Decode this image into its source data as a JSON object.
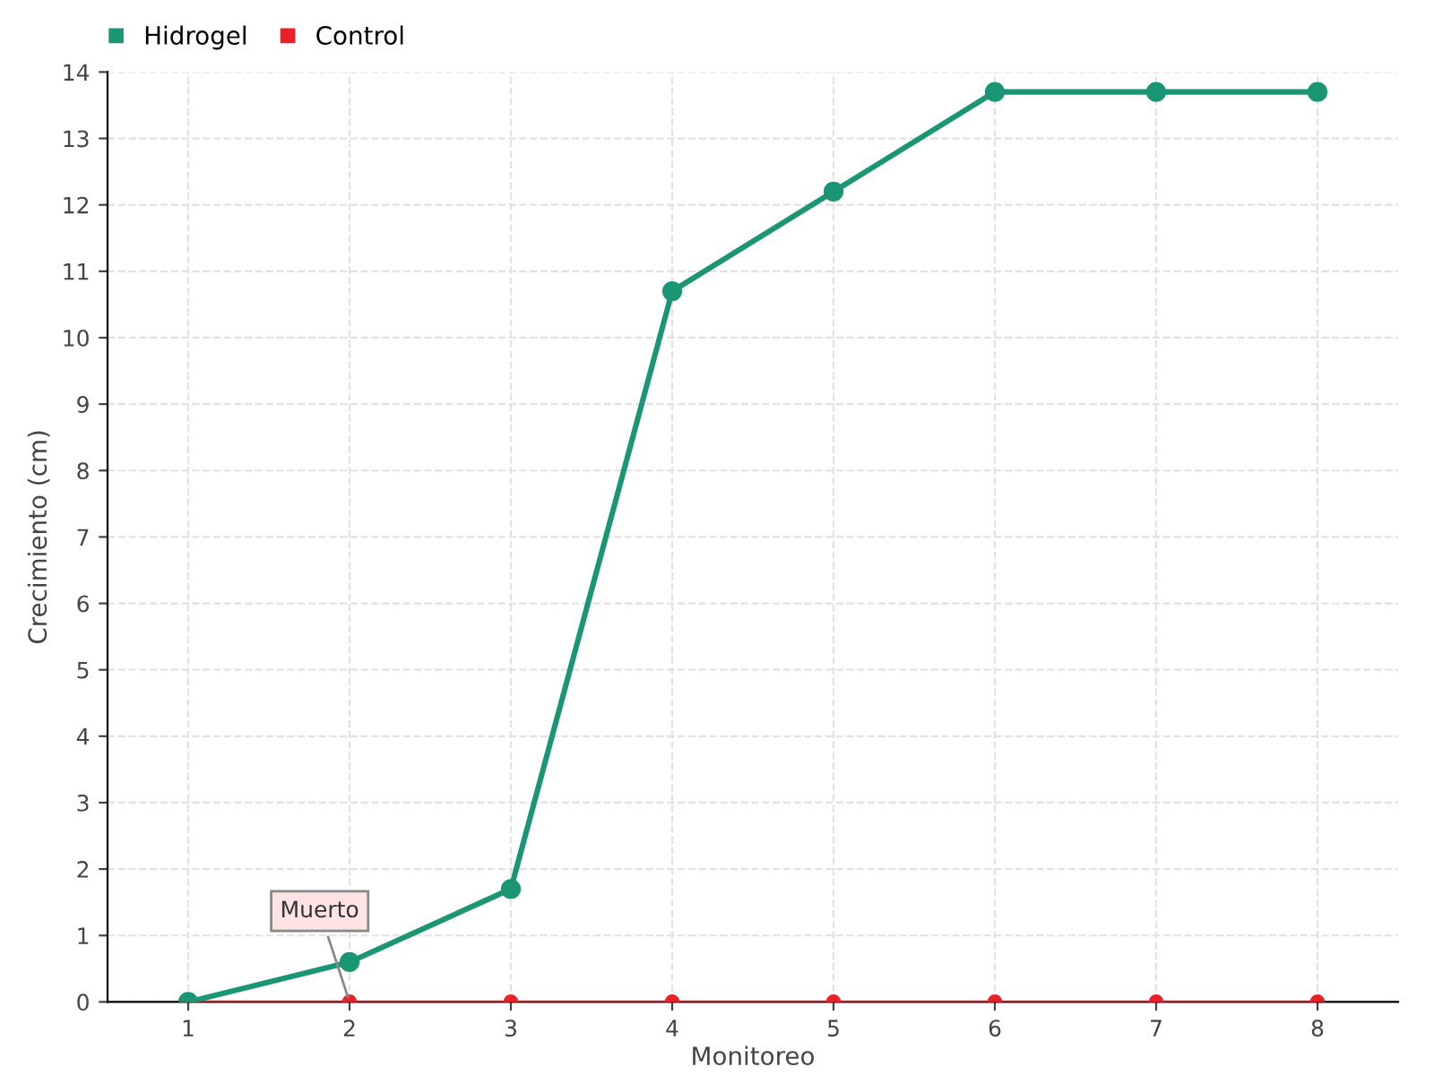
{
  "chart_data": {
    "type": "line",
    "xlabel": "Monitoreo",
    "ylabel": "Crecimiento (cm)",
    "categories": [
      "1",
      "2",
      "3",
      "4",
      "5",
      "6",
      "7",
      "8"
    ],
    "series": [
      {
        "name": "Hidrogel",
        "color": "#1b9675",
        "values": [
          0,
          0.6,
          1.7,
          10.7,
          12.2,
          13.7,
          13.7,
          13.7
        ]
      },
      {
        "name": "Control",
        "color": "#e8212b",
        "values": [
          0,
          0,
          0,
          0,
          0,
          0,
          0,
          0
        ]
      }
    ],
    "ylim": [
      0,
      14
    ],
    "yticks": [
      0,
      1,
      2,
      3,
      4,
      5,
      6,
      7,
      8,
      9,
      10,
      11,
      12,
      13,
      14
    ],
    "grid": true,
    "legend": "top left",
    "marker": "circle",
    "line_style": "solid",
    "annotations": [
      {
        "text": "Muerto",
        "x": "2",
        "y": 0
      }
    ]
  }
}
